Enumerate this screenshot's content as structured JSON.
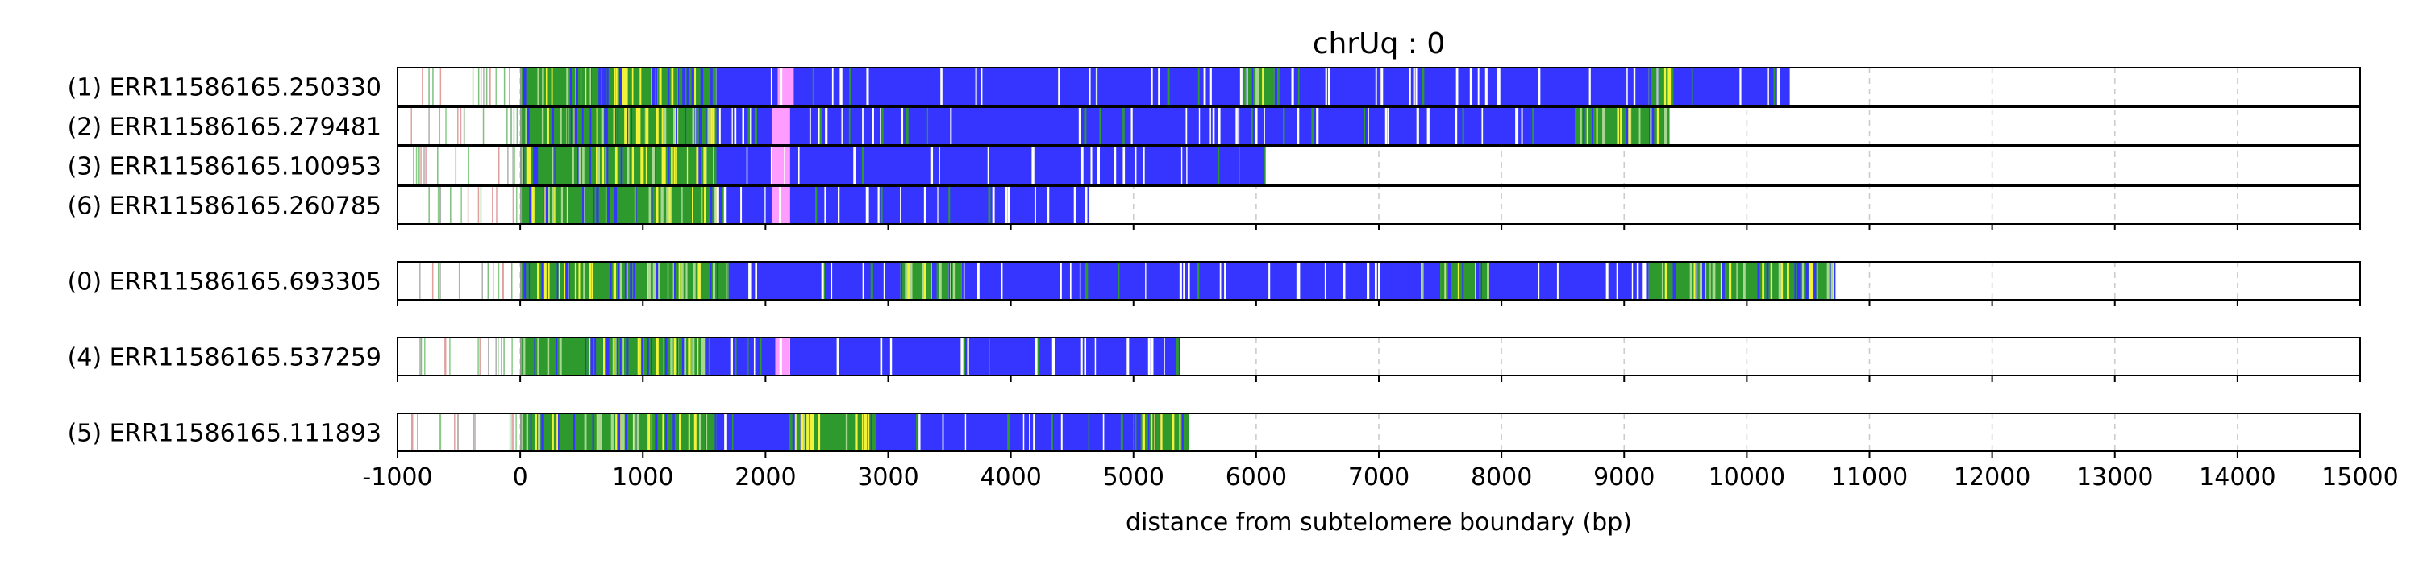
{
  "chart_data": {
    "type": "read-track",
    "title": "chrUq : 0",
    "xlabel": "distance from subtelomere boundary (bp)",
    "xlim": [
      -1000,
      15000
    ],
    "xticks": [
      -1000,
      0,
      1000,
      2000,
      3000,
      4000,
      5000,
      6000,
      7000,
      8000,
      9000,
      10000,
      11000,
      12000,
      13000,
      14000,
      15000
    ],
    "grid": "vertical-dashed",
    "colors": {
      "blue": "#3535ff",
      "green": "#2e9a2e",
      "yellow": "#f2f23a",
      "pink": "#ff9cff",
      "white": "#ffffff",
      "grid": "#cccccc",
      "frame": "#000000"
    },
    "groups": [
      {
        "reads": [
          {
            "label": "(1) ERR11586165.250330",
            "end": 10350,
            "segments": [
              {
                "start": 0,
                "end": 1600,
                "color": "green"
              },
              {
                "start": 1600,
                "end": 2100,
                "color": "blue"
              },
              {
                "start": 2100,
                "end": 2230,
                "color": "pink"
              },
              {
                "start": 2230,
                "end": 5900,
                "color": "blue"
              },
              {
                "start": 5900,
                "end": 6150,
                "color": "green"
              },
              {
                "start": 6150,
                "end": 9200,
                "color": "blue"
              },
              {
                "start": 9200,
                "end": 9400,
                "color": "green"
              },
              {
                "start": 9400,
                "end": 10350,
                "color": "blue"
              }
            ]
          },
          {
            "label": "(2) ERR11586165.279481",
            "end": 9370,
            "segments": [
              {
                "start": 0,
                "end": 1600,
                "color": "green"
              },
              {
                "start": 1600,
                "end": 2050,
                "color": "blue"
              },
              {
                "start": 2050,
                "end": 2200,
                "color": "pink"
              },
              {
                "start": 2200,
                "end": 8600,
                "color": "blue"
              },
              {
                "start": 8600,
                "end": 9370,
                "color": "green"
              }
            ]
          },
          {
            "label": "(3) ERR11586165.100953",
            "end": 6070,
            "segments": [
              {
                "start": 0,
                "end": 1600,
                "color": "green"
              },
              {
                "start": 1600,
                "end": 2050,
                "color": "blue"
              },
              {
                "start": 2050,
                "end": 2200,
                "color": "pink"
              },
              {
                "start": 2200,
                "end": 6070,
                "color": "blue"
              }
            ]
          },
          {
            "label": "(6) ERR11586165.260785",
            "end": 4640,
            "segments": [
              {
                "start": 0,
                "end": 1600,
                "color": "green"
              },
              {
                "start": 1600,
                "end": 2050,
                "color": "blue"
              },
              {
                "start": 2050,
                "end": 2200,
                "color": "pink"
              },
              {
                "start": 2200,
                "end": 4640,
                "color": "blue"
              }
            ]
          }
        ]
      },
      {
        "reads": [
          {
            "label": "(0) ERR11586165.693305",
            "end": 10720,
            "segments": [
              {
                "start": 0,
                "end": 1700,
                "color": "green"
              },
              {
                "start": 1700,
                "end": 3100,
                "color": "blue"
              },
              {
                "start": 3100,
                "end": 3600,
                "color": "green"
              },
              {
                "start": 3600,
                "end": 7500,
                "color": "blue"
              },
              {
                "start": 7500,
                "end": 7900,
                "color": "green"
              },
              {
                "start": 7900,
                "end": 9200,
                "color": "blue"
              },
              {
                "start": 9200,
                "end": 10720,
                "color": "green"
              }
            ]
          }
        ]
      },
      {
        "reads": [
          {
            "label": "(4) ERR11586165.537259",
            "end": 5380,
            "segments": [
              {
                "start": 0,
                "end": 1550,
                "color": "green"
              },
              {
                "start": 1550,
                "end": 2080,
                "color": "blue"
              },
              {
                "start": 2080,
                "end": 2200,
                "color": "pink"
              },
              {
                "start": 2200,
                "end": 5380,
                "color": "blue"
              }
            ]
          }
        ]
      },
      {
        "reads": [
          {
            "label": "(5) ERR11586165.111893",
            "end": 5450,
            "segments": [
              {
                "start": 0,
                "end": 1600,
                "color": "green"
              },
              {
                "start": 1600,
                "end": 2200,
                "color": "blue"
              },
              {
                "start": 2200,
                "end": 2900,
                "color": "green"
              },
              {
                "start": 2900,
                "end": 5000,
                "color": "blue"
              },
              {
                "start": 5000,
                "end": 5450,
                "color": "green"
              }
            ]
          }
        ]
      }
    ]
  }
}
